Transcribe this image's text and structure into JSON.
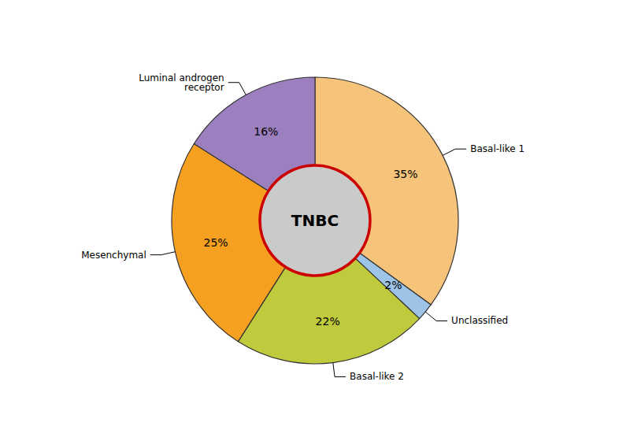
{
  "chart_data": {
    "type": "pie",
    "categories": [
      "Basal-like 1",
      "Unclassified",
      "Basal-like 2",
      "Mesenchymal",
      "Luminal androgen\nreceptor"
    ],
    "values": [
      35,
      2,
      22,
      25,
      16
    ],
    "value_labels": [
      "35%",
      "2%",
      "22%",
      "25%",
      "16%"
    ],
    "colors": [
      "#F5C47A",
      "#9DC3E6",
      "#BFCA3C",
      "#F5A020",
      "#9B7FBF"
    ],
    "data_labels": true,
    "legend": false,
    "annotations": [
      "TNBC"
    ]
  }
}
